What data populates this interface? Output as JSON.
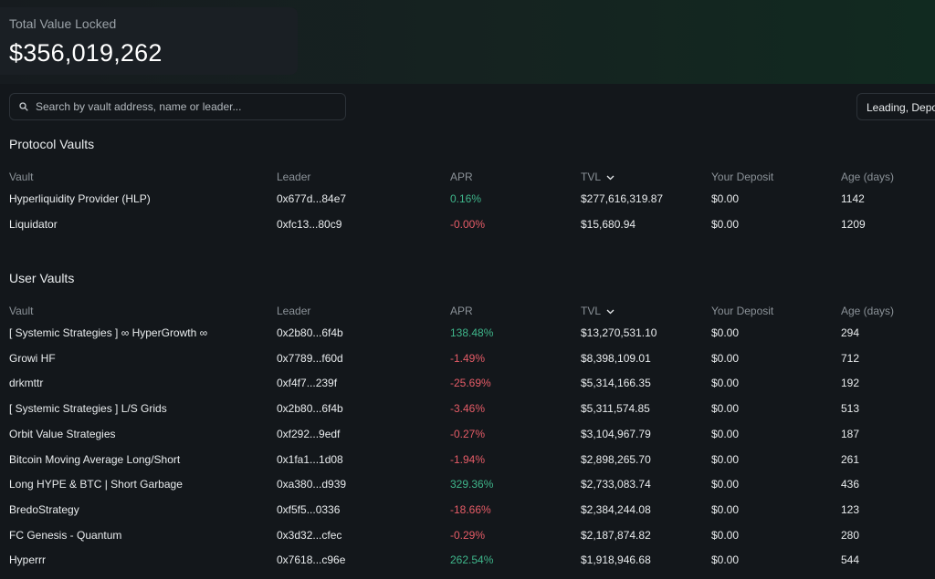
{
  "tvl": {
    "label": "Total Value Locked",
    "value": "$356,019,262"
  },
  "search": {
    "placeholder": "Search by vault address, name or leader..."
  },
  "filter": {
    "label": "Leading, Deposited, Others"
  },
  "columns": {
    "vault": "Vault",
    "leader": "Leader",
    "apr": "APR",
    "tvl": "TVL",
    "deposit": "Your Deposit",
    "age": "Age (days)"
  },
  "protocol": {
    "title": "Protocol Vaults",
    "rows": [
      {
        "vault": "Hyperliquidity Provider (HLP)",
        "leader": "0x677d...84e7",
        "apr": "0.16%",
        "tvl": "$277,616,319.87",
        "deposit": "$0.00",
        "age": "1142"
      },
      {
        "vault": "Liquidator",
        "leader": "0xfc13...80c9",
        "apr": "-0.00%",
        "tvl": "$15,680.94",
        "deposit": "$0.00",
        "age": "1209"
      }
    ]
  },
  "user": {
    "title": "User Vaults",
    "rows": [
      {
        "vault": "[ Systemic Strategies ] ∞ HyperGrowth ∞",
        "leader": "0x2b80...6f4b",
        "apr": "138.48%",
        "tvl": "$13,270,531.10",
        "deposit": "$0.00",
        "age": "294"
      },
      {
        "vault": "Growi HF",
        "leader": "0x7789...f60d",
        "apr": "-1.49%",
        "tvl": "$8,398,109.01",
        "deposit": "$0.00",
        "age": "712"
      },
      {
        "vault": "drkmttr",
        "leader": "0xf4f7...239f",
        "apr": "-25.69%",
        "tvl": "$5,314,166.35",
        "deposit": "$0.00",
        "age": "192"
      },
      {
        "vault": "[ Systemic Strategies ] L/S Grids",
        "leader": "0x2b80...6f4b",
        "apr": "-3.46%",
        "tvl": "$5,311,574.85",
        "deposit": "$0.00",
        "age": "513"
      },
      {
        "vault": "Orbit Value Strategies",
        "leader": "0xf292...9edf",
        "apr": "-0.27%",
        "tvl": "$3,104,967.79",
        "deposit": "$0.00",
        "age": "187"
      },
      {
        "vault": "Bitcoin Moving Average Long/Short",
        "leader": "0x1fa1...1d08",
        "apr": "-1.94%",
        "tvl": "$2,898,265.70",
        "deposit": "$0.00",
        "age": "261"
      },
      {
        "vault": "Long HYPE & BTC | Short Garbage",
        "leader": "0xa380...d939",
        "apr": "329.36%",
        "tvl": "$2,733,083.74",
        "deposit": "$0.00",
        "age": "436"
      },
      {
        "vault": "BredoStrategy",
        "leader": "0xf5f5...0336",
        "apr": "-18.66%",
        "tvl": "$2,384,244.08",
        "deposit": "$0.00",
        "age": "123"
      },
      {
        "vault": "FC Genesis - Quantum",
        "leader": "0x3d32...cfec",
        "apr": "-0.29%",
        "tvl": "$2,187,874.82",
        "deposit": "$0.00",
        "age": "280"
      },
      {
        "vault": "Hyperrr",
        "leader": "0x7618...c96e",
        "apr": "262.54%",
        "tvl": "$1,918,946.68",
        "deposit": "$0.00",
        "age": "544"
      }
    ]
  }
}
